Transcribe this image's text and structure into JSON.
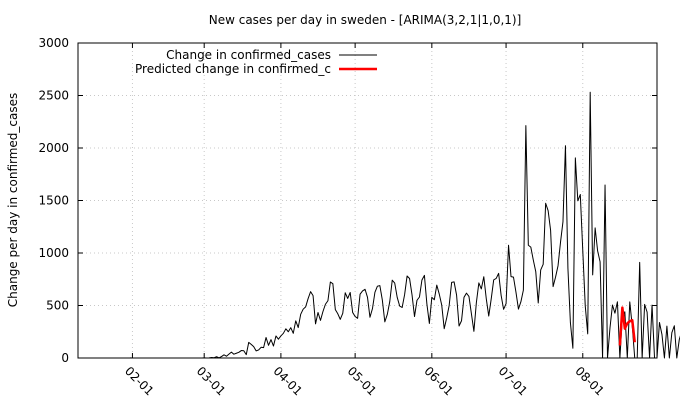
{
  "chart_data": {
    "type": "line",
    "title": "New cases per day in sweden -  [ARIMA(3,2,1|1,0,1)]",
    "xlabel": "",
    "ylabel": "Change per day in confirmed_cases",
    "ylim": [
      0,
      3000
    ],
    "yticks": [
      "0",
      "500",
      "1000",
      "1500",
      "2000",
      "2500",
      "3000"
    ],
    "x_range": [
      "2020-01-10",
      "2020-08-31"
    ],
    "xticks": [
      {
        "date": "2020-02-01",
        "label": "02-01"
      },
      {
        "date": "2020-03-01",
        "label": "03-01"
      },
      {
        "date": "2020-04-01",
        "label": "04-01"
      },
      {
        "date": "2020-05-01",
        "label": "05-01"
      },
      {
        "date": "2020-06-01",
        "label": "06-01"
      },
      {
        "date": "2020-07-01",
        "label": "07-01"
      },
      {
        "date": "2020-08-01",
        "label": "08-01"
      }
    ],
    "grid": true,
    "legend_position": "top-left",
    "series": [
      {
        "name": "Change in confirmed_cases",
        "color": "#000000",
        "start_date": "2020-01-31",
        "values": [
          1,
          0,
          0,
          0,
          0,
          0,
          0,
          0,
          0,
          0,
          0,
          0,
          0,
          0,
          0,
          0,
          0,
          0,
          0,
          0,
          0,
          0,
          0,
          0,
          0,
          0,
          0,
          0,
          0,
          0,
          1,
          0,
          1,
          5,
          3,
          12,
          2,
          14,
          30,
          17,
          37,
          56,
          36,
          45,
          54,
          71,
          69,
          32,
          149,
          130,
          108,
          68,
          77,
          102,
          99,
          195,
          121,
          175,
          114,
          210,
          179,
          210,
          235,
          278,
          250,
          289,
          235,
          354,
          290,
          416,
          465,
          487,
          566,
          632,
          594,
          325,
          433,
          358,
          443,
          512,
          545,
          724,
          708,
          461,
          421,
          368,
          426,
          621,
          567,
          624,
          434,
          395,
          378,
          608,
          639,
          655,
          578,
          388,
          470,
          626,
          684,
          689,
          551,
          344,
          415,
          537,
          741,
          714,
          578,
          495,
          481,
          604,
          781,
          757,
          601,
          395,
          550,
          581,
          743,
          787,
          515,
          329,
          578,
          555,
          694,
          609,
          504,
          279,
          381,
          499,
          720,
          725,
          599,
          305,
          355,
          578,
          618,
          586,
          421,
          254,
          528,
          715,
          658,
          774,
          565,
          400,
          563,
          744,
          758,
          806,
          597,
          464,
          517,
          1074,
          775,
          770,
          627,
          466,
          536,
          647,
          2213,
          1074,
          1056,
          934,
          823,
          524,
          839,
          892,
          1474,
          1403,
          1216,
          680,
          770,
          879,
          1102,
          1298,
          2022,
          855,
          336,
          93,
          1906,
          1497,
          1557,
          1025,
          497,
          230,
          2531,
          792,
          1239,
          1020,
          916,
          0,
          1648,
          0,
          287,
          505,
          427,
          535,
          0,
          391,
          440,
          0,
          534,
          302,
          0,
          0,
          911,
          0,
          511,
          437,
          0,
          504,
          0,
          0,
          338,
          224,
          0,
          304,
          0,
          241,
          307,
          0,
          175,
          256,
          0,
          0,
          504,
          0,
          177,
          325,
          391,
          397,
          0,
          169,
          0,
          636,
          0,
          151,
          261,
          365,
          412,
          435,
          0
        ],
        "y_estimated": true
      },
      {
        "name": "Predicted change in confirmed_c",
        "color": "#ff0000",
        "start_date": "2020-08-16",
        "values": [
          120,
          480,
          280,
          330,
          350,
          360,
          150
        ],
        "y_estimated": true
      }
    ]
  }
}
